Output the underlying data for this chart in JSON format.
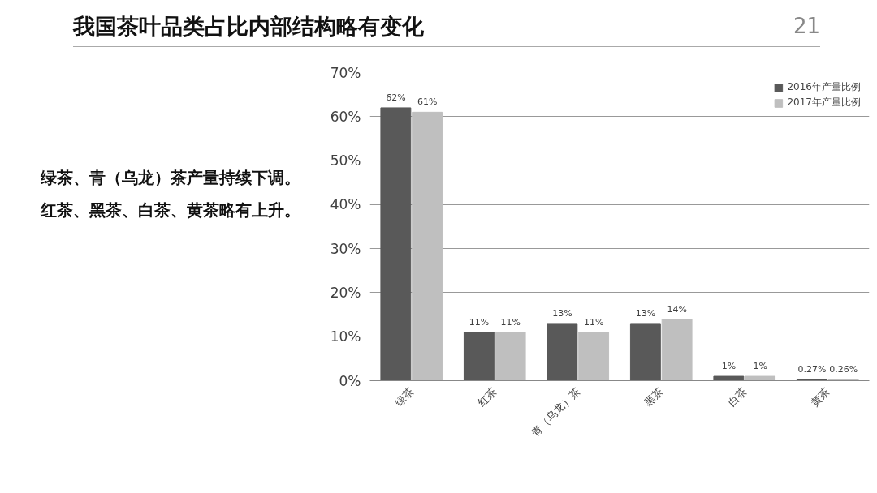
{
  "chart_data": {
    "type": "bar",
    "title": "我国茶叶品类占比内部结构略有变化",
    "annotations": [
      "21",
      "绿茶、青（乌龙）茶产量持续下调。",
      "红茶、黑茶、白茶、黄茶略有上升。"
    ],
    "categories": [
      "绿茶",
      "红茶",
      "青（乌龙）茶",
      "黑茶",
      "白茶",
      "黄茶"
    ],
    "series": [
      {
        "name": "2016年产量比例",
        "color": "#595959",
        "values": [
          62,
          11,
          13,
          13,
          1,
          0.27
        ],
        "value_labels": [
          "62%",
          "11%",
          "13%",
          "13%",
          "1%",
          "0.27%"
        ]
      },
      {
        "name": "2017年产量比例",
        "color": "#bfbfbf",
        "values": [
          61,
          11,
          11,
          14,
          1,
          0.26
        ],
        "value_labels": [
          "61%",
          "11%",
          "11%",
          "14%",
          "1%",
          "0.26%"
        ]
      }
    ],
    "ylim": [
      0,
      70
    ],
    "yticks": [
      {
        "value": 0,
        "label": "0%"
      },
      {
        "value": 10,
        "label": "10%"
      },
      {
        "value": 20,
        "label": "20%"
      },
      {
        "value": 30,
        "label": "30%"
      },
      {
        "value": 40,
        "label": "40%"
      },
      {
        "value": 50,
        "label": "50%"
      },
      {
        "value": 60,
        "label": "60%"
      },
      {
        "value": 70,
        "label": "70%"
      }
    ],
    "grid": "y",
    "legend": "top right"
  }
}
